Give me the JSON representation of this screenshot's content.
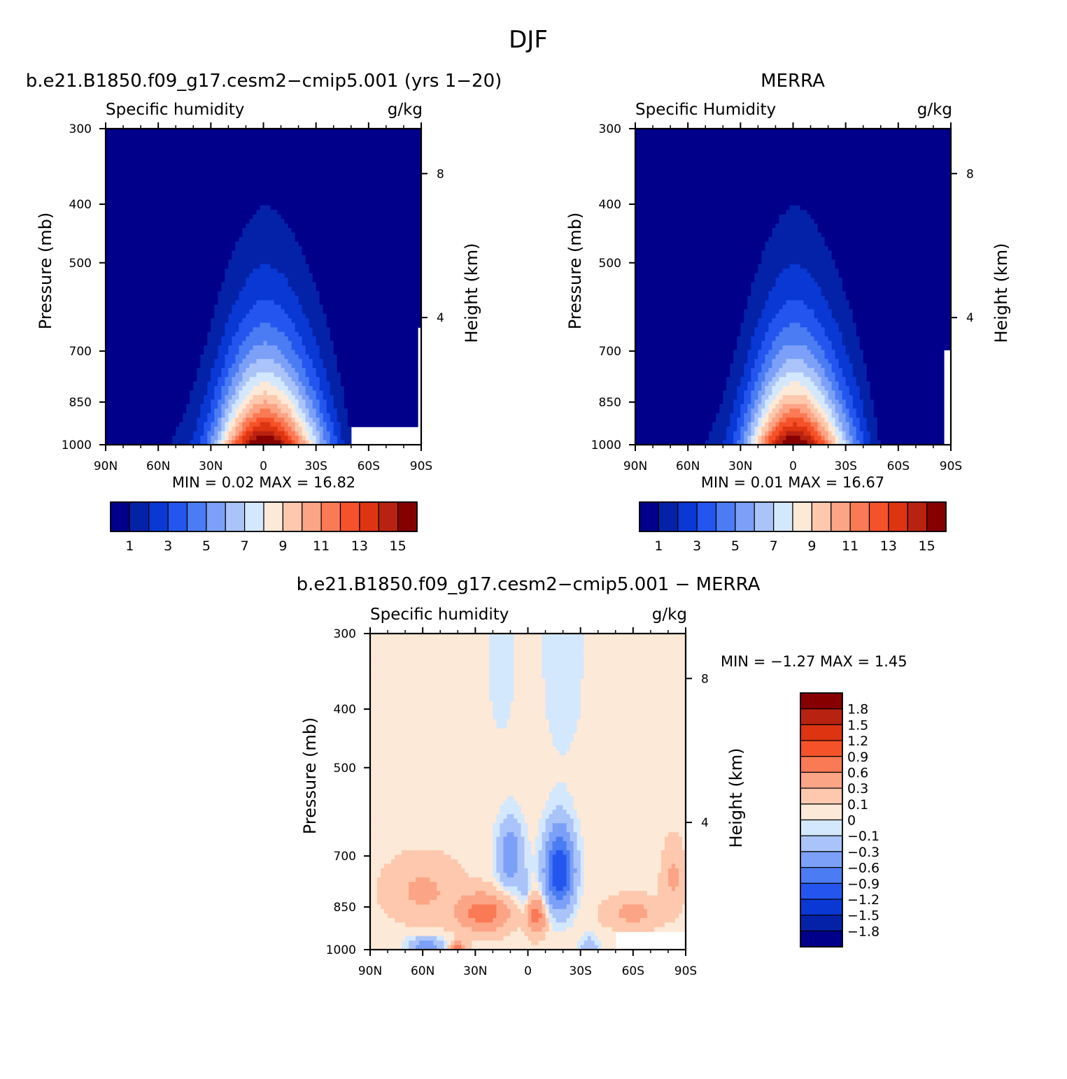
{
  "figure": {
    "title": "DJF"
  },
  "chart_data": [
    {
      "id": "model",
      "type": "contour",
      "title": "b.e21.B1850.f09_g17.cesm2-cmip5.001 (yrs 1-20)",
      "left_label": "Specific humidity",
      "right_label": "g/kg",
      "xlabel": "",
      "ylabel": "Pressure (mb)",
      "y2label": "Height (km)",
      "x_ticks": [
        "90N",
        "60N",
        "30N",
        "0",
        "30S",
        "60S",
        "90S"
      ],
      "x_values": [
        90,
        60,
        30,
        0,
        -30,
        -60,
        -90
      ],
      "y_ticks": [
        "300",
        "400",
        "500",
        "700",
        "850",
        "1000"
      ],
      "y_values": [
        300,
        400,
        500,
        700,
        850,
        1000
      ],
      "ylim": [
        1000,
        300
      ],
      "y2_ticks": [
        "8",
        "4"
      ],
      "y2_values": [
        8,
        4
      ],
      "min_label": "MIN =",
      "min_value": "0.02",
      "max_label": "MAX =",
      "max_value": "16.82",
      "levels": [
        1,
        2,
        3,
        4,
        5,
        6,
        7,
        8,
        9,
        10,
        11,
        12,
        13,
        14,
        15
      ],
      "colorbar_labels": [
        "1",
        "3",
        "5",
        "7",
        "9",
        "11",
        "13",
        "15"
      ],
      "shape": {
        "peak_lat": -2,
        "peak_val": 16.5,
        "spread": 30,
        "top_lat": -5,
        "top_pressure": 385
      }
    },
    {
      "id": "obs",
      "type": "contour",
      "title": "MERRA",
      "left_label": "Specific Humidity",
      "right_label": "g/kg",
      "xlabel": "",
      "ylabel": "Pressure (mb)",
      "y2label": "Height (km)",
      "x_ticks": [
        "90N",
        "60N",
        "30N",
        "0",
        "30S",
        "60S",
        "90S"
      ],
      "x_values": [
        90,
        60,
        30,
        0,
        -30,
        -60,
        -90
      ],
      "y_ticks": [
        "300",
        "400",
        "500",
        "700",
        "850",
        "1000"
      ],
      "y_values": [
        300,
        400,
        500,
        700,
        850,
        1000
      ],
      "ylim": [
        1000,
        300
      ],
      "y2_ticks": [
        "8",
        "4"
      ],
      "y2_values": [
        8,
        4
      ],
      "min_label": "MIN =",
      "min_value": "0.01",
      "max_label": "MAX =",
      "max_value": "16.67",
      "levels": [
        1,
        2,
        3,
        4,
        5,
        6,
        7,
        8,
        9,
        10,
        11,
        12,
        13,
        14,
        15
      ],
      "colorbar_labels": [
        "1",
        "3",
        "5",
        "7",
        "9",
        "11",
        "13",
        "15"
      ],
      "shape": {
        "peak_lat": -2,
        "peak_val": 16.4,
        "spread": 29,
        "top_lat": -3,
        "top_pressure": 375
      }
    },
    {
      "id": "diff",
      "type": "contour",
      "title": "b.e21.B1850.f09_g17.cesm2-cmip5.001 - MERRA",
      "left_label": "Specific humidity",
      "right_label": "g/kg",
      "xlabel": "",
      "ylabel": "Pressure (mb)",
      "y2label": "Height (km)",
      "x_ticks": [
        "90N",
        "60N",
        "30N",
        "0",
        "30S",
        "60S",
        "90S"
      ],
      "x_values": [
        90,
        60,
        30,
        0,
        -30,
        -60,
        -90
      ],
      "y_ticks": [
        "300",
        "400",
        "500",
        "700",
        "850",
        "1000"
      ],
      "y_values": [
        300,
        400,
        500,
        700,
        850,
        1000
      ],
      "ylim": [
        1000,
        300
      ],
      "y2_ticks": [
        "8",
        "4"
      ],
      "y2_values": [
        8,
        4
      ],
      "min_label": "MIN =",
      "min_value": "-1.27",
      "max_label": "MAX =",
      "max_value": "1.45",
      "levels": [
        -1.8,
        -1.5,
        -1.2,
        -0.9,
        -0.6,
        -0.3,
        -0.1,
        0,
        0.1,
        0.3,
        0.6,
        0.9,
        1.2,
        1.5,
        1.8
      ],
      "colorbar_labels": [
        "1.8",
        "1.5",
        "1.2",
        "0.9",
        "0.6",
        "0.3",
        "0.1",
        "0",
        "-0.1",
        "-0.3",
        "-0.6",
        "-0.9",
        "-1.2",
        "-1.5",
        "-1.8"
      ]
    }
  ],
  "palette": [
    "#00008b",
    "#0422a8",
    "#0a38d4",
    "#2456ef",
    "#4b7cf3",
    "#7ca0f7",
    "#aac4fa",
    "#d4e8fd",
    "#fde9d8",
    "#fdc8ad",
    "#fca486",
    "#fa7a55",
    "#f5522a",
    "#dd3412",
    "#b82210",
    "#870000"
  ]
}
